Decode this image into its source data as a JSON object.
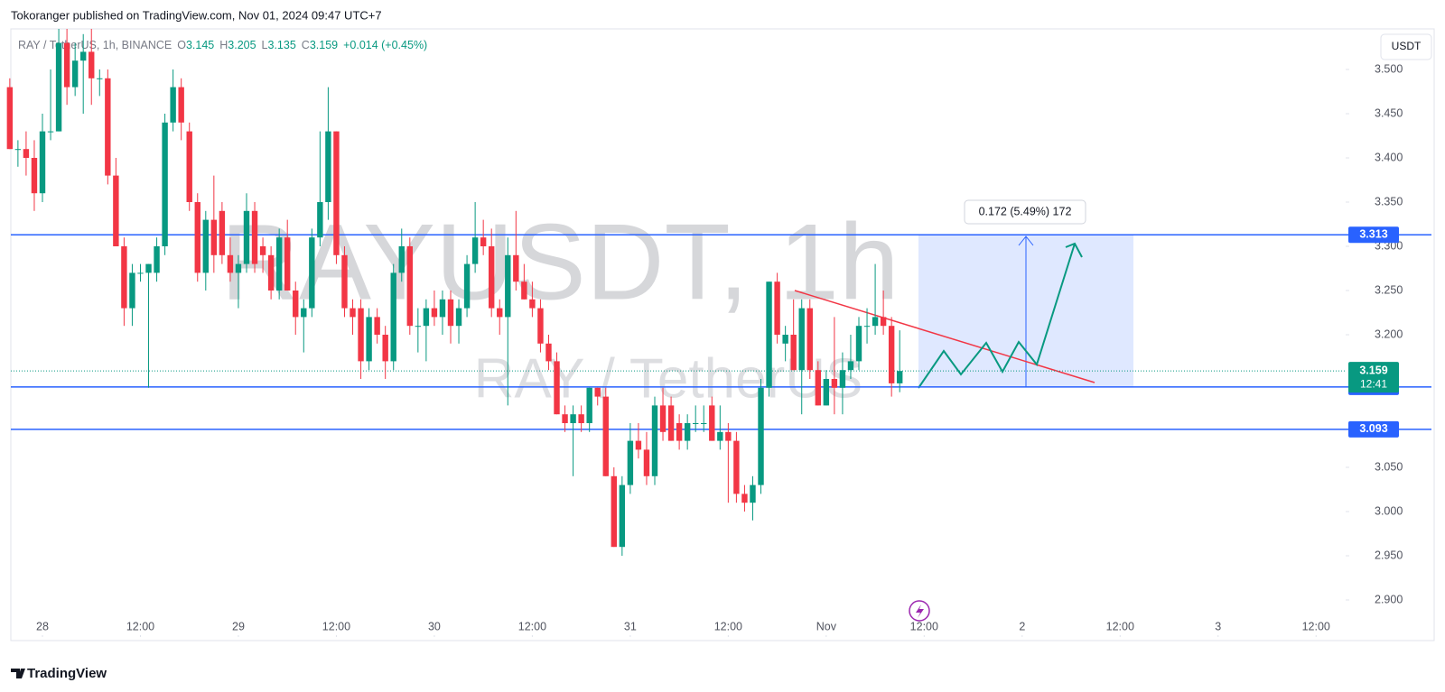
{
  "header": "Tokoranger published on TradingView.com, Nov 01, 2024 09:47 UTC+7",
  "footer": "TradingView",
  "currency_button": "USDT",
  "legend": {
    "symbol": "RAY / TetherUS, 1h, BINANCE",
    "ohlc": [
      {
        "key": "O",
        "value": "3.145"
      },
      {
        "key": "H",
        "value": "3.205"
      },
      {
        "key": "L",
        "value": "3.135"
      },
      {
        "key": "C",
        "value": "3.159"
      }
    ],
    "change": "+0.014 (+0.45%)"
  },
  "watermark": {
    "title": "RAYUSDT, 1h",
    "subtitle": "RAY / TetherUS"
  },
  "chart_data": {
    "type": "candlestick",
    "up_color": "#089981",
    "down_color": "#f23645",
    "x": [
      -4,
      -3,
      -2,
      -1,
      0,
      1,
      2,
      3,
      4,
      5,
      6,
      7,
      8,
      9,
      10,
      11,
      12,
      13,
      14,
      15,
      16,
      17,
      18,
      19,
      20,
      21,
      22,
      23,
      24,
      25,
      26,
      27,
      28,
      29,
      30,
      31,
      32,
      33,
      34,
      35,
      36,
      37,
      38,
      39,
      40,
      41,
      42,
      43,
      44,
      45,
      46,
      47,
      48,
      49,
      50,
      51,
      52,
      53,
      54,
      55,
      56,
      57,
      58,
      59,
      60,
      61,
      62,
      63,
      64,
      65,
      66,
      67,
      68,
      69,
      70,
      71,
      72,
      73,
      74,
      75,
      76,
      77,
      78,
      79,
      80,
      81,
      82,
      83,
      84,
      85,
      86,
      87,
      88,
      89,
      90,
      91,
      92,
      93,
      94,
      95,
      96,
      97,
      98,
      99,
      100,
      101,
      102,
      103,
      104,
      105
    ],
    "open": [
      3.48,
      3.41,
      3.41,
      3.4,
      3.36,
      3.43,
      3.43,
      3.53,
      3.48,
      3.51,
      3.52,
      3.49,
      3.49,
      3.38,
      3.3,
      3.23,
      3.27,
      3.27,
      3.27,
      3.3,
      3.44,
      3.48,
      3.43,
      3.35,
      3.27,
      3.33,
      3.34,
      3.29,
      3.27,
      3.28,
      3.34,
      3.3,
      3.29,
      3.25,
      3.31,
      3.25,
      3.22,
      3.23,
      3.31,
      3.35,
      3.43,
      3.29,
      3.23,
      3.23,
      3.17,
      3.22,
      3.2,
      3.17,
      3.27,
      3.3,
      3.21,
      3.21,
      3.23,
      3.22,
      3.24,
      3.21,
      3.23,
      3.28,
      3.31,
      3.3,
      3.23,
      3.22,
      3.29,
      3.26,
      3.24,
      3.23,
      3.19,
      3.17,
      3.11,
      3.1,
      3.11,
      3.1,
      3.14,
      3.13,
      3.04,
      2.96,
      3.03,
      3.08,
      3.07,
      3.04,
      3.12,
      3.12,
      3.1,
      3.08,
      3.1,
      3.1,
      3.12,
      3.08,
      3.09,
      3.08,
      3.02,
      3.01,
      3.03,
      3.14,
      3.26,
      3.19,
      3.2,
      3.16,
      3.23,
      3.16,
      3.12,
      3.15,
      3.14,
      3.16,
      3.17,
      3.21,
      3.21,
      3.22,
      3.21,
      3.145
    ],
    "high": [
      3.49,
      3.42,
      3.43,
      3.42,
      3.45,
      3.5,
      3.55,
      3.55,
      3.53,
      3.54,
      3.55,
      3.5,
      3.5,
      3.4,
      3.31,
      3.28,
      3.28,
      3.28,
      3.31,
      3.45,
      3.5,
      3.49,
      3.44,
      3.36,
      3.34,
      3.38,
      3.35,
      3.31,
      3.29,
      3.36,
      3.35,
      3.31,
      3.3,
      3.32,
      3.33,
      3.26,
      3.24,
      3.32,
      3.43,
      3.48,
      3.43,
      3.3,
      3.24,
      3.24,
      3.23,
      3.23,
      3.21,
      3.28,
      3.32,
      3.31,
      3.23,
      3.24,
      3.25,
      3.25,
      3.25,
      3.24,
      3.29,
      3.35,
      3.33,
      3.32,
      3.24,
      3.31,
      3.34,
      3.28,
      3.26,
      3.24,
      3.2,
      3.18,
      3.12,
      3.12,
      3.12,
      3.14,
      3.14,
      3.14,
      3.05,
      3.04,
      3.1,
      3.1,
      3.09,
      3.13,
      3.14,
      3.13,
      3.11,
      3.11,
      3.12,
      3.12,
      3.13,
      3.12,
      3.1,
      3.09,
      3.03,
      3.04,
      3.15,
      3.26,
      3.27,
      3.21,
      3.24,
      3.24,
      3.24,
      3.17,
      3.16,
      3.22,
      3.18,
      3.2,
      3.22,
      3.23,
      3.28,
      3.25,
      3.22,
      3.205
    ],
    "low": [
      3.41,
      3.39,
      3.38,
      3.34,
      3.35,
      3.42,
      3.43,
      3.46,
      3.47,
      3.45,
      3.46,
      3.47,
      3.37,
      3.3,
      3.21,
      3.21,
      3.26,
      3.14,
      3.26,
      3.29,
      3.43,
      3.42,
      3.34,
      3.26,
      3.25,
      3.27,
      3.28,
      3.26,
      3.23,
      3.27,
      3.27,
      3.27,
      3.24,
      3.24,
      3.25,
      3.2,
      3.18,
      3.22,
      3.3,
      3.33,
      3.28,
      3.22,
      3.2,
      3.15,
      3.16,
      3.19,
      3.15,
      3.16,
      3.26,
      3.2,
      3.18,
      3.17,
      3.21,
      3.2,
      3.19,
      3.19,
      3.22,
      3.27,
      3.29,
      3.22,
      3.2,
      3.12,
      3.25,
      3.24,
      3.22,
      3.18,
      3.16,
      3.11,
      3.09,
      3.04,
      3.09,
      3.09,
      3.12,
      3.04,
      2.96,
      2.95,
      3.02,
      3.06,
      3.03,
      3.03,
      3.08,
      3.08,
      3.07,
      3.07,
      3.09,
      3.09,
      3.08,
      3.07,
      3.01,
      3.01,
      3.0,
      2.99,
      3.02,
      3.13,
      3.19,
      3.17,
      3.16,
      3.11,
      3.15,
      3.12,
      3.12,
      3.11,
      3.11,
      3.15,
      3.16,
      3.19,
      3.2,
      3.2,
      3.13,
      3.135
    ],
    "close": [
      3.41,
      3.41,
      3.4,
      3.36,
      3.43,
      3.43,
      3.53,
      3.48,
      3.51,
      3.52,
      3.49,
      3.49,
      3.38,
      3.3,
      3.23,
      3.27,
      3.27,
      3.28,
      3.3,
      3.44,
      3.48,
      3.44,
      3.35,
      3.27,
      3.33,
      3.29,
      3.29,
      3.27,
      3.28,
      3.34,
      3.28,
      3.29,
      3.25,
      3.31,
      3.25,
      3.22,
      3.23,
      3.31,
      3.35,
      3.43,
      3.29,
      3.23,
      3.22,
      3.17,
      3.22,
      3.2,
      3.17,
      3.27,
      3.3,
      3.21,
      3.21,
      3.23,
      3.22,
      3.24,
      3.21,
      3.23,
      3.28,
      3.31,
      3.3,
      3.23,
      3.22,
      3.29,
      3.26,
      3.24,
      3.23,
      3.19,
      3.17,
      3.11,
      3.1,
      3.11,
      3.1,
      3.14,
      3.13,
      3.04,
      2.96,
      3.03,
      3.08,
      3.07,
      3.04,
      3.12,
      3.09,
      3.08,
      3.08,
      3.1,
      3.1,
      3.1,
      3.08,
      3.09,
      3.08,
      3.02,
      3.01,
      3.03,
      3.14,
      3.26,
      3.2,
      3.2,
      3.16,
      3.23,
      3.16,
      3.12,
      3.15,
      3.14,
      3.16,
      3.17,
      3.21,
      3.21,
      3.22,
      3.21,
      3.145,
      3.159
    ],
    "ylim": [
      2.88,
      3.53
    ],
    "yticks": [
      {
        "value": 3.5,
        "label": "3.500"
      },
      {
        "value": 3.45,
        "label": "3.450"
      },
      {
        "value": 3.4,
        "label": "3.400"
      },
      {
        "value": 3.35,
        "label": "3.350"
      },
      {
        "value": 3.3,
        "label": "3.300"
      },
      {
        "value": 3.25,
        "label": "3.250"
      },
      {
        "value": 3.2,
        "label": "3.200"
      },
      {
        "value": 3.05,
        "label": "3.050"
      },
      {
        "value": 3,
        "label": "3.000"
      },
      {
        "value": 2.95,
        "label": "2.950"
      },
      {
        "value": 2.9,
        "label": "2.900"
      }
    ],
    "xlim": [
      -4,
      160
    ],
    "xticks": [
      {
        "value": 0,
        "label": "28"
      },
      {
        "value": 12,
        "label": "12:00"
      },
      {
        "value": 24,
        "label": "29"
      },
      {
        "value": 36,
        "label": "12:00"
      },
      {
        "value": 48,
        "label": "30"
      },
      {
        "value": 60,
        "label": "12:00"
      },
      {
        "value": 72,
        "label": "31"
      },
      {
        "value": 84,
        "label": "12:00"
      },
      {
        "value": 96,
        "label": "Nov"
      },
      {
        "value": 108,
        "label": "12:00"
      },
      {
        "value": 120,
        "label": "2"
      },
      {
        "value": 132,
        "label": "12:00"
      },
      {
        "value": 144,
        "label": "3"
      },
      {
        "value": 156,
        "label": "12:00"
      }
    ],
    "levels": [
      3.313,
      3.141,
      3.093
    ],
    "level_color": "#2962ff",
    "last_price": 3.159,
    "countdown": "12:41",
    "measure_label": "0.172 (5.49%) 172"
  }
}
